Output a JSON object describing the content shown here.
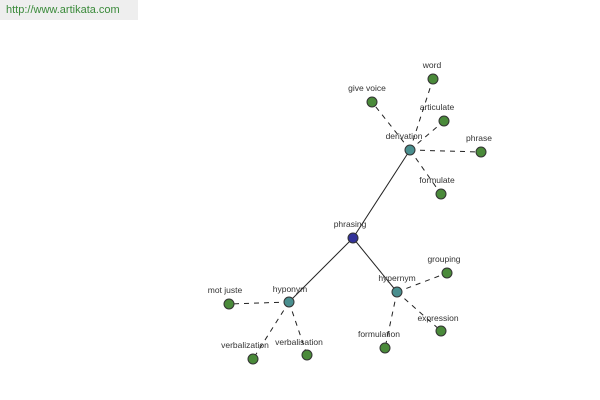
{
  "header": {
    "url": "http://www.artikata.com"
  },
  "nodes": [
    {
      "label": "phrasing"
    },
    {
      "label": "derivation"
    },
    {
      "label": "hyponym"
    },
    {
      "label": "hypernym"
    },
    {
      "label": "word"
    },
    {
      "label": "give voice"
    },
    {
      "label": "articulate"
    },
    {
      "label": "phrase"
    },
    {
      "label": "formulate"
    },
    {
      "label": "grouping"
    },
    {
      "label": "expression"
    },
    {
      "label": "formulation"
    },
    {
      "label": "mot juste"
    },
    {
      "label": "verbalization"
    },
    {
      "label": "verbalisation"
    }
  ]
}
